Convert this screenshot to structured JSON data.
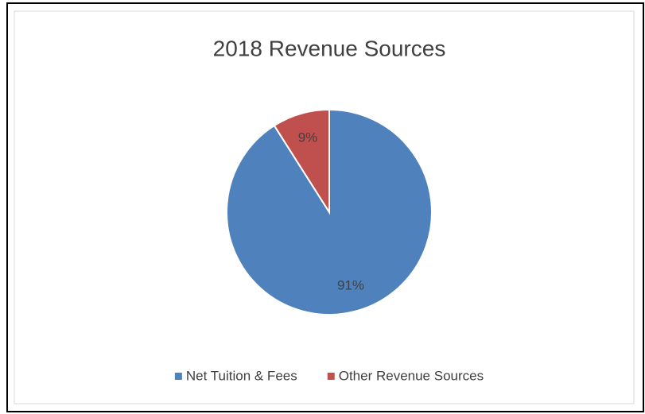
{
  "chart_data": {
    "type": "pie",
    "title": "2018 Revenue Sources",
    "categories": [
      "Net Tuition & Fees",
      "Other Revenue Sources"
    ],
    "values": [
      91,
      9
    ],
    "value_labels": [
      "91%",
      "9%"
    ],
    "colors": [
      "#4f81bd",
      "#c0504d"
    ],
    "legend": "bottom"
  }
}
